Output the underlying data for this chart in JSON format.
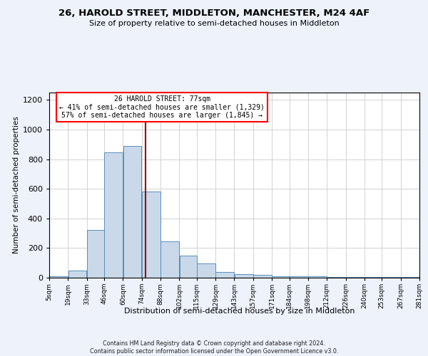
{
  "title": "26, HAROLD STREET, MIDDLETON, MANCHESTER, M24 4AF",
  "subtitle": "Size of property relative to semi-detached houses in Middleton",
  "xlabel": "Distribution of semi-detached houses by size in Middleton",
  "ylabel": "Number of semi-detached properties",
  "bar_color": "#c9d9ea",
  "bar_edge_color": "#5b8db8",
  "annotation_title": "26 HAROLD STREET: 77sqm",
  "annotation_line1": "← 41% of semi-detached houses are smaller (1,329)",
  "annotation_line2": "57% of semi-detached houses are larger (1,845) →",
  "vline_color": "#990000",
  "property_sqm": 77,
  "bin_edges": [
    5,
    19,
    33,
    46,
    60,
    74,
    88,
    102,
    115,
    129,
    143,
    157,
    171,
    184,
    198,
    212,
    226,
    240,
    253,
    267,
    281
  ],
  "bar_heights": [
    10,
    50,
    320,
    845,
    890,
    580,
    245,
    150,
    97,
    37,
    25,
    18,
    10,
    12,
    10,
    5,
    5,
    5,
    5,
    5
  ],
  "ylim": [
    0,
    1250
  ],
  "yticks": [
    0,
    200,
    400,
    600,
    800,
    1000,
    1200
  ],
  "footer_line1": "Contains HM Land Registry data © Crown copyright and database right 2024.",
  "footer_line2": "Contains public sector information licensed under the Open Government Licence v3.0.",
  "background_color": "#edf2fb",
  "plot_background_color": "#ffffff",
  "grid_color": "#cccccc"
}
